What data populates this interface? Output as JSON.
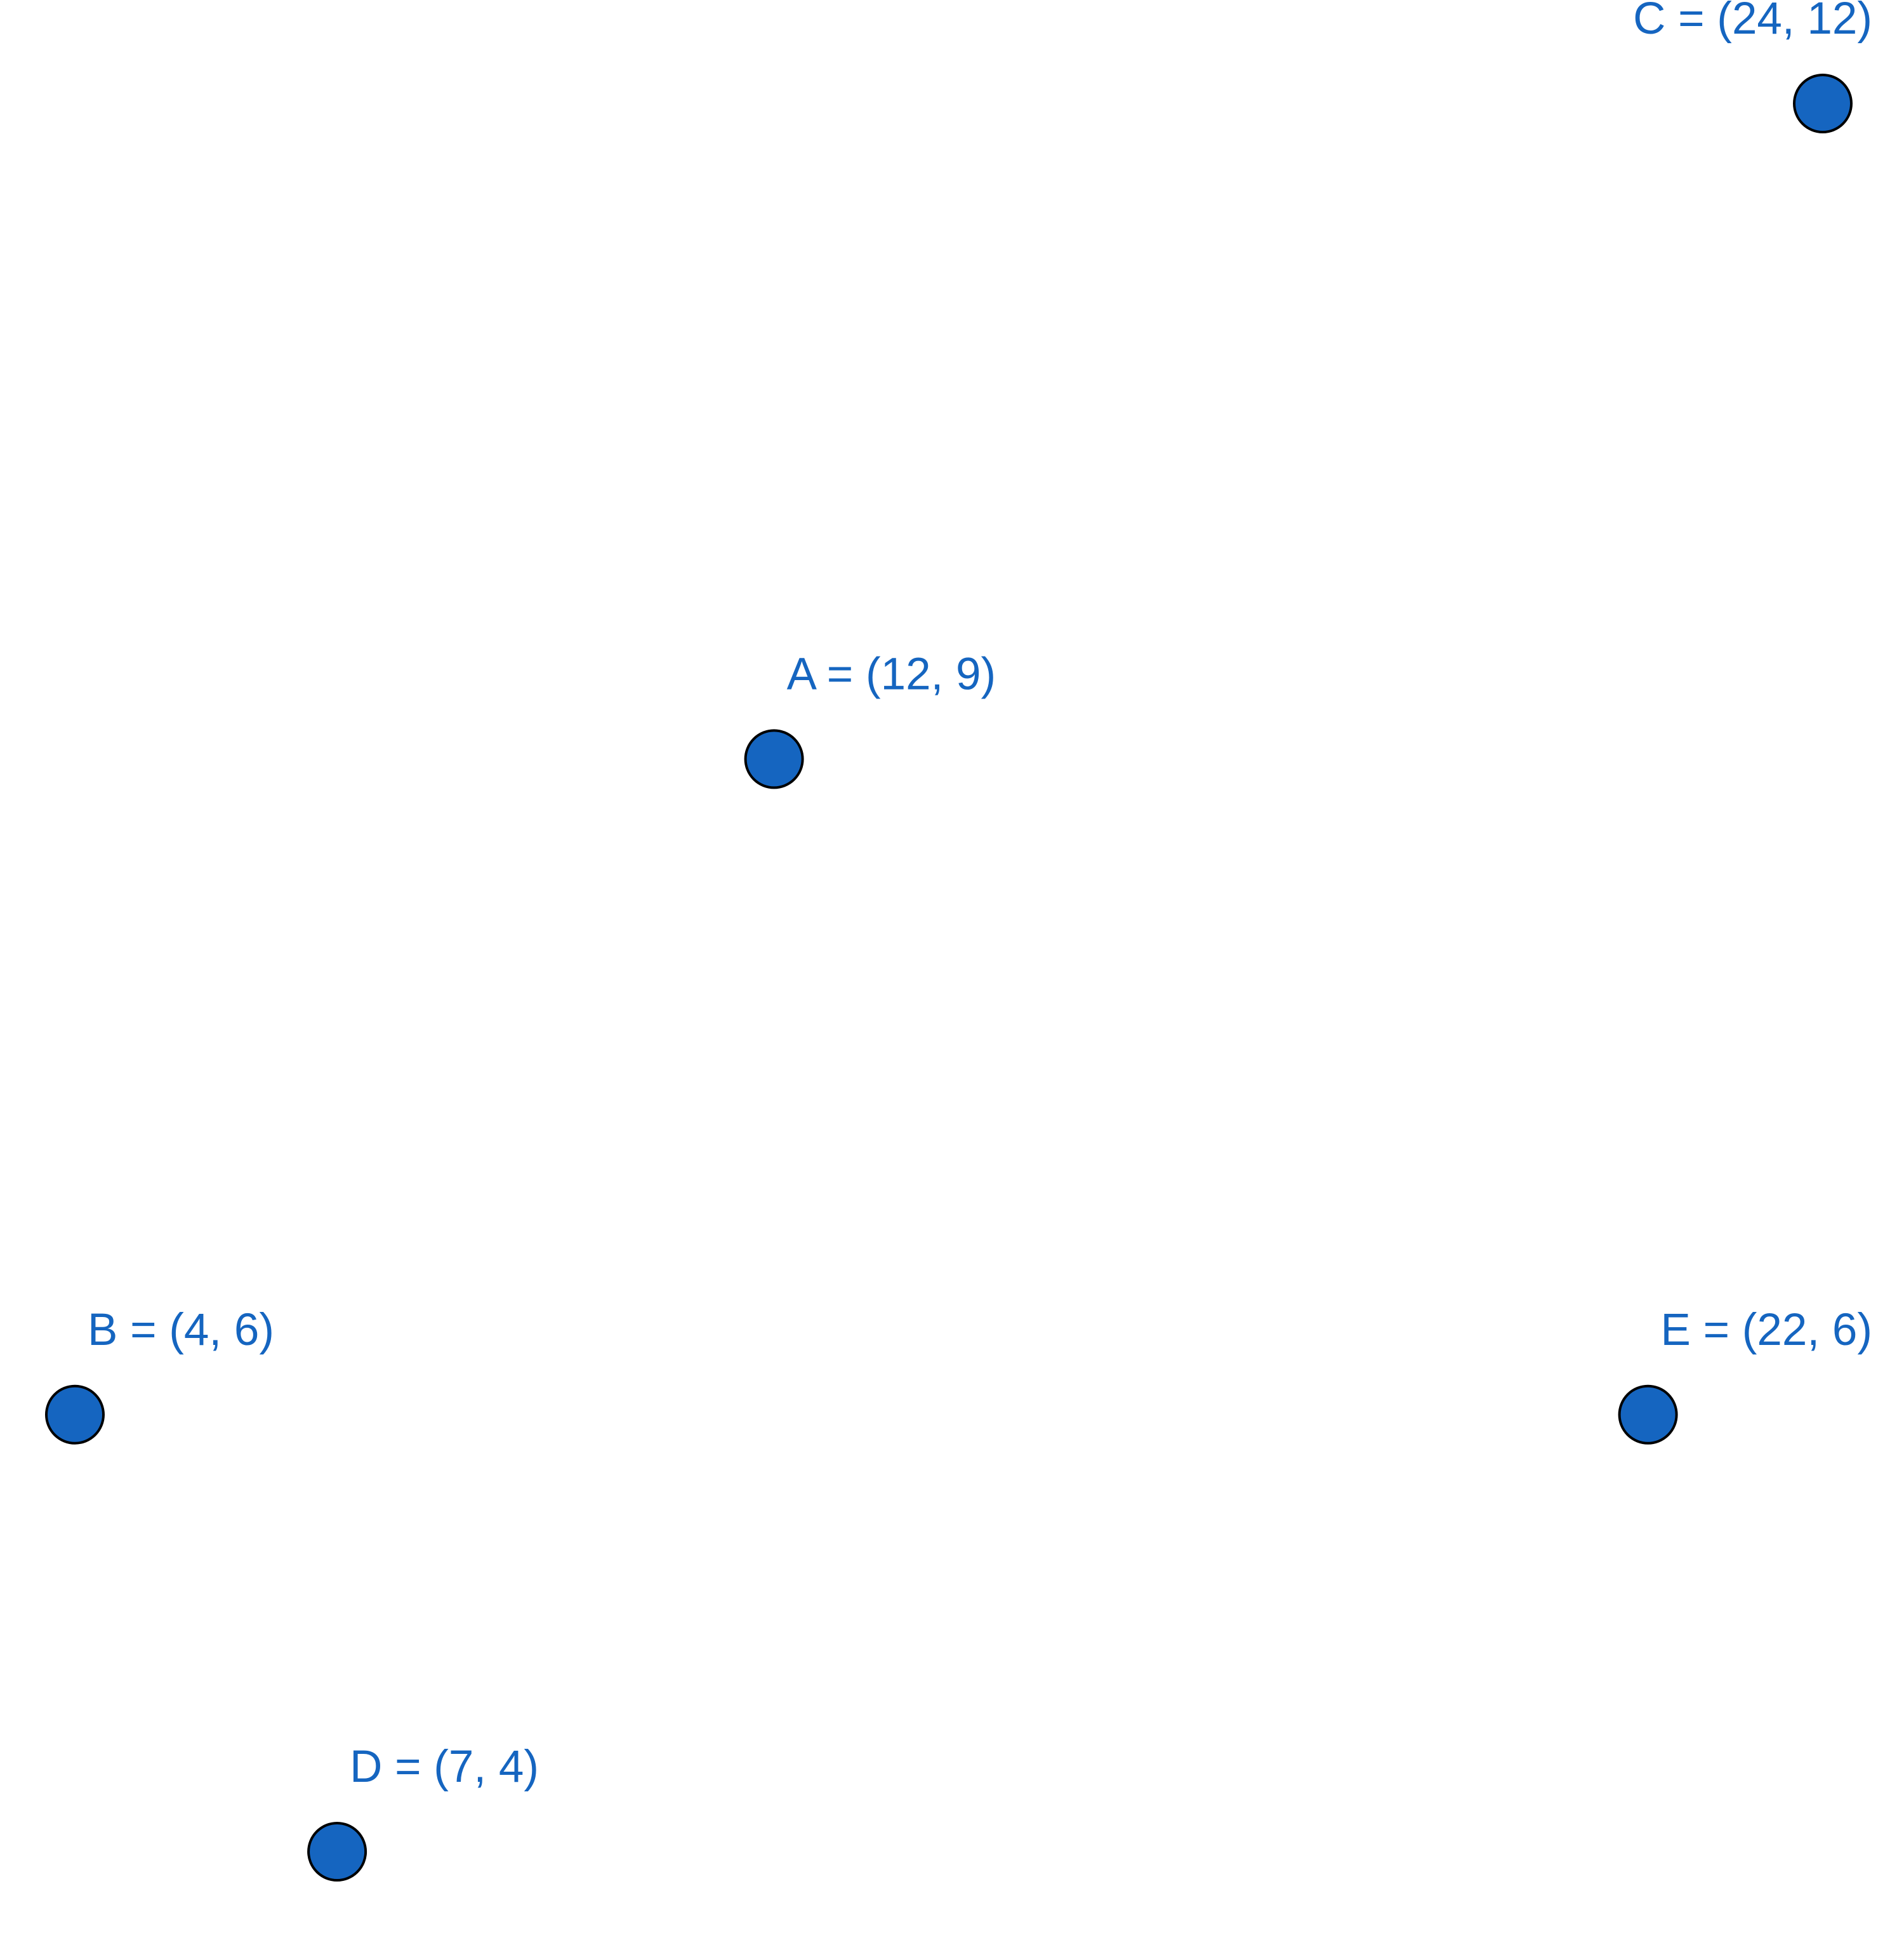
{
  "chart_data": {
    "type": "scatter",
    "x": [
      12,
      4,
      24,
      7,
      22
    ],
    "values": [
      9,
      6,
      12,
      4,
      6
    ],
    "value_labels": [
      "A = (12, 9)",
      "B = (4, 6)",
      "C = (24, 12)",
      "D = (7, 4)",
      "E = (22, 6)"
    ],
    "color": "#1565c0"
  }
}
